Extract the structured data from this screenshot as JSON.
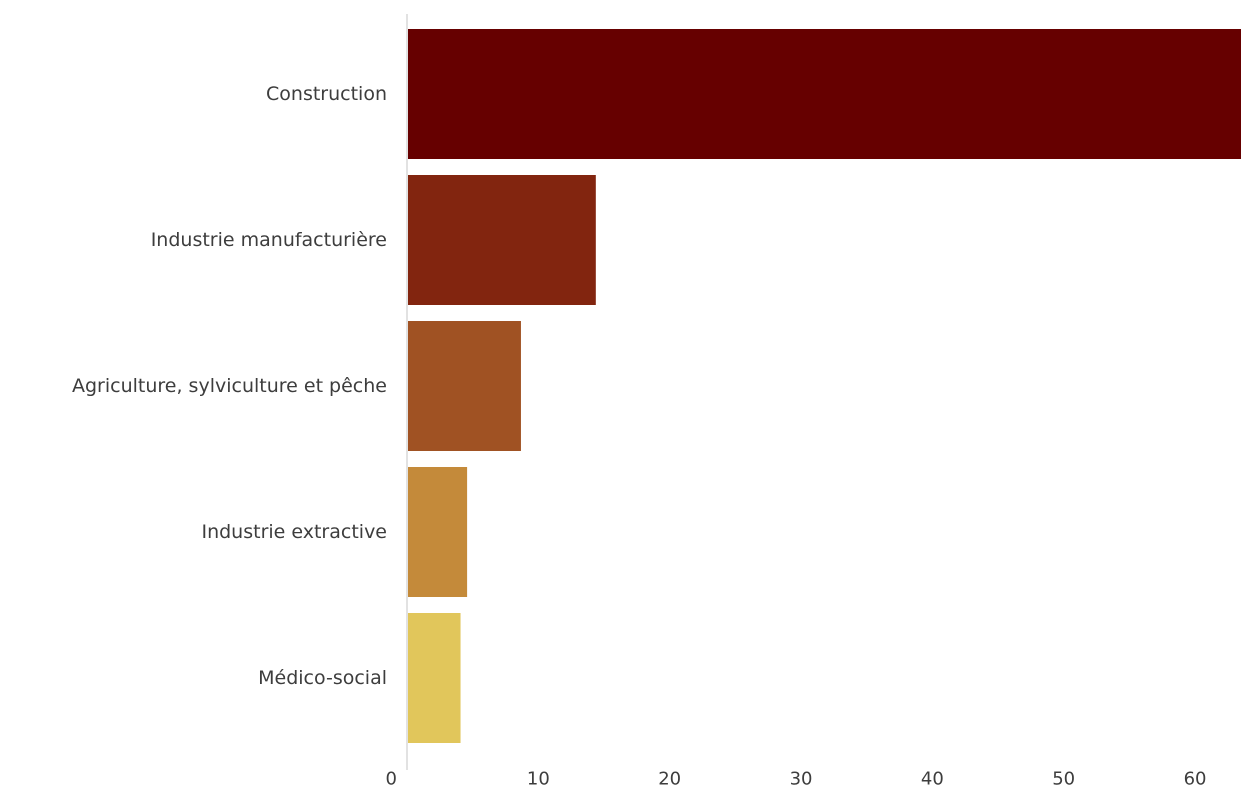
{
  "chart_data": {
    "type": "bar",
    "orientation": "horizontal",
    "title": "",
    "xlabel": "",
    "ylabel": "",
    "categories": [
      "Construction",
      "Industrie manufacturière",
      "Agriculture, sylviculture et pêche",
      "Industrie extractive",
      "Médico-social"
    ],
    "values": [
      63.5,
      14.3,
      8.6,
      4.5,
      4.0
    ],
    "colors": [
      "#660000",
      "#82250f",
      "#a05223",
      "#c48a3a",
      "#e1c65b"
    ],
    "x_ticks": [
      "0",
      "10",
      "20",
      "30",
      "40",
      "50",
      "60"
    ],
    "xlim": [
      0,
      63.5
    ],
    "grid": false,
    "legend": "none"
  }
}
